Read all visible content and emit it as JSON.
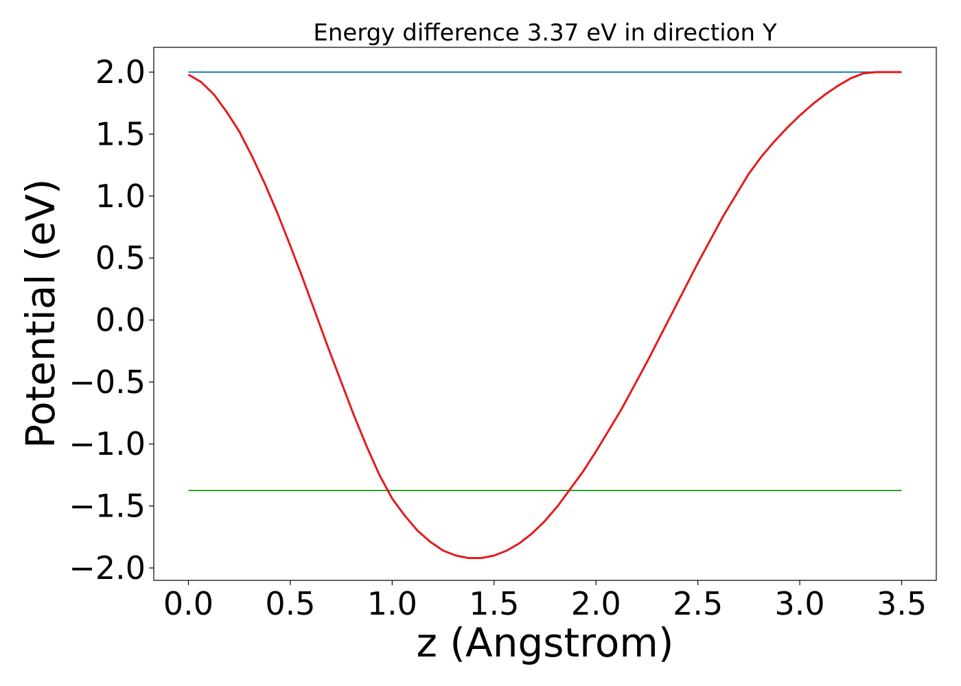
{
  "chart_data": {
    "type": "line",
    "title": "Energy difference 3.37 eV in direction Y",
    "xlabel": "z (Angstrom)",
    "ylabel": "Potential (eV)",
    "xlim": [
      -0.17,
      3.67
    ],
    "ylim": [
      -2.1,
      2.2
    ],
    "x_ticks": [
      0.0,
      0.5,
      1.0,
      1.5,
      2.0,
      2.5,
      3.0,
      3.5
    ],
    "x_tick_labels": [
      "0.0",
      "0.5",
      "1.0",
      "1.5",
      "2.0",
      "2.5",
      "3.0",
      "3.5"
    ],
    "y_ticks": [
      -2.0,
      -1.5,
      -1.0,
      -0.5,
      0.0,
      0.5,
      1.0,
      1.5,
      2.0
    ],
    "y_tick_labels": [
      "−2.0",
      "−1.5",
      "−1.0",
      "−0.5",
      "0.0",
      "0.5",
      "1.0",
      "1.5",
      "2.0"
    ],
    "grid": false,
    "legend": false,
    "series": [
      {
        "color": "#1f77b4",
        "stroke_width": 2,
        "x": [
          0.0,
          3.5
        ],
        "y": [
          2.0,
          2.0
        ]
      },
      {
        "color": "#2ca02c",
        "stroke_width": 2,
        "x": [
          0.0,
          3.5
        ],
        "y": [
          -1.375,
          -1.375
        ]
      },
      {
        "color": "#e41a1c",
        "stroke_width": 3,
        "x": [
          0.0,
          0.0625,
          0.125,
          0.1875,
          0.25,
          0.3125,
          0.375,
          0.4375,
          0.5,
          0.5625,
          0.625,
          0.6875,
          0.75,
          0.8125,
          0.875,
          0.9375,
          1.0,
          1.0625,
          1.125,
          1.1875,
          1.25,
          1.3125,
          1.375,
          1.4375,
          1.5,
          1.5625,
          1.625,
          1.6875,
          1.75,
          1.8125,
          1.875,
          1.9375,
          2.0,
          2.0625,
          2.125,
          2.1875,
          2.25,
          2.3125,
          2.375,
          2.4375,
          2.5,
          2.5625,
          2.625,
          2.6875,
          2.75,
          2.8125,
          2.875,
          2.9375,
          3.0,
          3.0625,
          3.125,
          3.1875,
          3.25,
          3.3125,
          3.375,
          3.4375,
          3.5
        ],
        "y": [
          1.98,
          1.92,
          1.82,
          1.68,
          1.52,
          1.32,
          1.1,
          0.86,
          0.6,
          0.33,
          0.05,
          -0.23,
          -0.5,
          -0.77,
          -1.02,
          -1.25,
          -1.44,
          -1.58,
          -1.7,
          -1.79,
          -1.86,
          -1.9,
          -1.92,
          -1.92,
          -1.9,
          -1.86,
          -1.8,
          -1.72,
          -1.62,
          -1.5,
          -1.36,
          -1.22,
          -1.06,
          -0.89,
          -0.72,
          -0.53,
          -0.34,
          -0.14,
          0.06,
          0.26,
          0.46,
          0.65,
          0.84,
          1.01,
          1.18,
          1.32,
          1.44,
          1.55,
          1.65,
          1.74,
          1.82,
          1.89,
          1.95,
          1.99,
          2.0,
          2.0,
          2.0
        ]
      }
    ]
  }
}
